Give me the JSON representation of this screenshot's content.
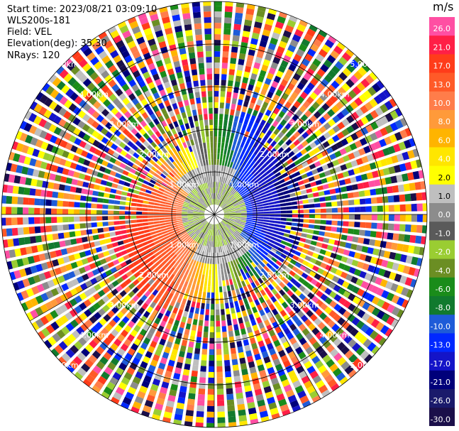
{
  "header": {
    "start_time": "Start time: 2023/08/21 03:09:10",
    "instrument": "WLS200s-181",
    "field": "Field: VEL",
    "elevation": "Elevation(deg): 35.30",
    "nrays": "NRays: 120"
  },
  "chart_data": {
    "type": "heatmap",
    "projection": "polar-ppi",
    "field": "VEL",
    "units": "m/s",
    "nrays": 120,
    "ring_labels": [
      "1.00km",
      "2.00km",
      "3.00km",
      "4.00km",
      "5.00km"
    ],
    "label_angles_deg": [
      45,
      135,
      225,
      315
    ],
    "colorbar": {
      "title": "m/s",
      "ticks": [
        "26.0",
        "21.0",
        "17.0",
        "13.0",
        "10.0",
        "8.0",
        "6.0",
        "4.0",
        "2.0",
        "1.0",
        "0.0",
        "-1.0",
        "-2.0",
        "-4.0",
        "-6.0",
        "-8.0",
        "-10.0",
        "-13.0",
        "-17.0",
        "-21.0",
        "-26.0",
        "-30.0"
      ],
      "colors": [
        "#ff4fa3",
        "#ff1f46",
        "#ff3c1a",
        "#ff5a28",
        "#ff7d4a",
        "#ff9a3a",
        "#ffb400",
        "#ffe600",
        "#ffff00",
        "#bfbfbf",
        "#8c8c8c",
        "#5a5a5a",
        "#9acd32",
        "#6b8e23",
        "#1a8c1a",
        "#117a2e",
        "#1e5bd8",
        "#0028ff",
        "#1414c8",
        "#00007a",
        "#1a1a6b",
        "#1b0f4a"
      ]
    },
    "inner_rings_km": [
      1,
      2
    ],
    "max_range_km": 5.5
  }
}
